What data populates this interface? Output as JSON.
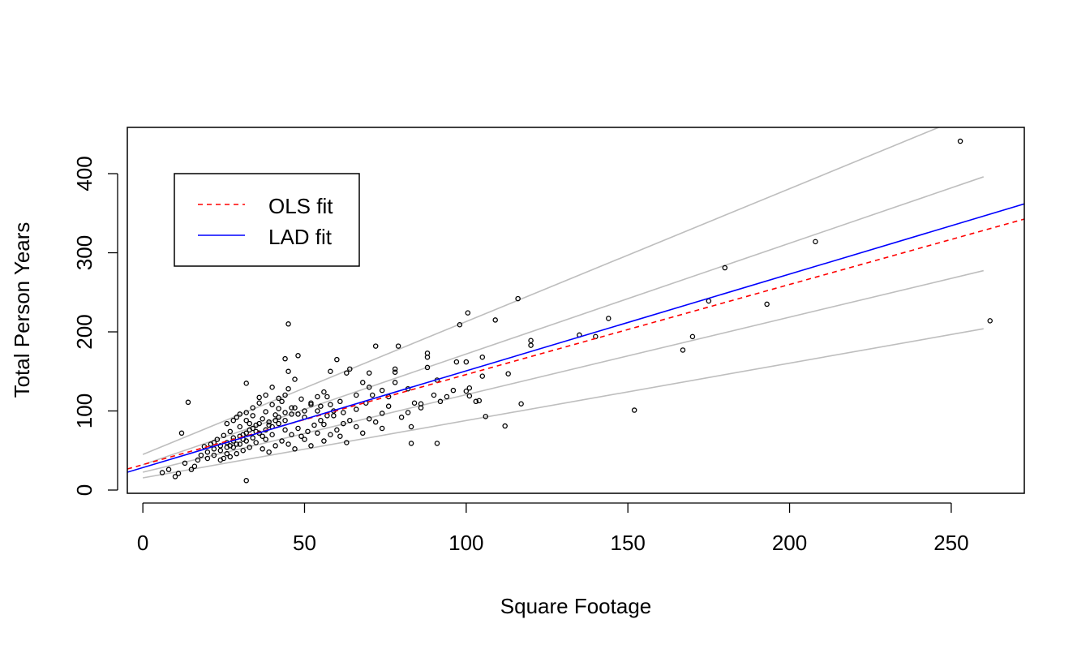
{
  "chart_data": {
    "type": "scatter",
    "title": "",
    "xlabel": "Square Footage",
    "ylabel": "Total Person Years",
    "xlim": [
      -4.8,
      272.6
    ],
    "ylim": [
      -4.1,
      458.5
    ],
    "xticks": [
      0,
      50,
      100,
      150,
      200,
      250
    ],
    "yticks": [
      0,
      100,
      200,
      300,
      400
    ],
    "grid": false,
    "legend": {
      "placement": "top-left",
      "entries": [
        {
          "label": "OLS fit",
          "color": "#ff0000",
          "style": "dashed"
        },
        {
          "label": "LAD fit",
          "color": "#0000ff",
          "style": "solid"
        }
      ]
    },
    "fit_lines": [
      {
        "name": "OLS fit",
        "intercept": 32.1,
        "slope": 1.139,
        "color": "#ff0000",
        "style": "dashed",
        "x_range": [
          -4.8,
          272.6
        ]
      },
      {
        "name": "LAD fit",
        "intercept": 28.4,
        "slope": 1.223,
        "color": "#0000ff",
        "style": "solid",
        "x_range": [
          -4.8,
          272.6
        ]
      }
    ],
    "quantile_lines": {
      "color": "#bebebe",
      "lines": [
        {
          "intercept": 45,
          "slope": 1.68,
          "x_range": [
            0,
            260
          ]
        },
        {
          "intercept": 32,
          "slope": 1.4,
          "x_range": [
            0,
            260
          ]
        },
        {
          "intercept": 22.6,
          "slope": 0.98,
          "x_range": [
            0,
            260
          ]
        },
        {
          "intercept": 15.4,
          "slope": 0.725,
          "x_range": [
            0,
            260
          ]
        }
      ]
    },
    "points": [
      [
        252.8,
        441
      ],
      [
        208,
        314
      ],
      [
        180,
        281
      ],
      [
        175,
        239
      ],
      [
        193,
        235
      ],
      [
        170,
        194
      ],
      [
        167,
        177
      ],
      [
        152,
        101
      ],
      [
        262,
        214
      ],
      [
        144,
        217
      ],
      [
        135,
        196
      ],
      [
        140,
        194
      ],
      [
        116,
        242
      ],
      [
        109,
        215
      ],
      [
        100.5,
        224
      ],
      [
        97,
        162
      ],
      [
        100,
        162
      ],
      [
        98,
        209
      ],
      [
        120,
        189
      ],
      [
        120,
        183
      ],
      [
        117,
        109
      ],
      [
        113,
        147
      ],
      [
        112,
        81
      ],
      [
        106,
        93
      ],
      [
        105,
        168
      ],
      [
        105,
        144
      ],
      [
        103,
        112
      ],
      [
        104,
        113
      ],
      [
        101,
        129
      ],
      [
        101,
        119
      ],
      [
        100,
        125
      ],
      [
        91,
        59
      ],
      [
        91,
        139
      ],
      [
        88,
        168
      ],
      [
        88,
        173
      ],
      [
        88,
        155
      ],
      [
        86,
        109
      ],
      [
        83,
        80
      ],
      [
        83,
        59
      ],
      [
        79,
        182
      ],
      [
        78,
        153
      ],
      [
        78,
        149
      ],
      [
        72,
        182
      ],
      [
        70,
        148
      ],
      [
        68,
        136
      ],
      [
        64,
        153
      ],
      [
        63,
        148
      ],
      [
        60,
        165
      ],
      [
        45,
        210
      ],
      [
        44,
        166
      ],
      [
        48,
        170
      ],
      [
        32,
        135
      ],
      [
        14,
        111
      ],
      [
        12,
        72
      ],
      [
        32,
        12
      ],
      [
        56,
        83
      ],
      [
        58,
        150
      ],
      [
        59,
        94
      ],
      [
        76,
        118
      ],
      [
        74,
        97
      ],
      [
        71,
        120
      ],
      [
        69,
        110
      ],
      [
        66,
        102
      ],
      [
        62,
        98
      ],
      [
        61,
        112
      ],
      [
        57,
        118
      ],
      [
        55,
        106
      ],
      [
        54,
        100
      ],
      [
        52,
        108
      ],
      [
        50,
        92
      ],
      [
        49,
        115
      ],
      [
        47,
        104
      ],
      [
        46,
        96
      ],
      [
        45,
        128
      ],
      [
        44,
        88
      ],
      [
        43,
        112
      ],
      [
        42,
        103
      ],
      [
        41,
        95
      ],
      [
        40,
        108
      ],
      [
        39,
        86
      ],
      [
        38,
        99
      ],
      [
        37,
        90
      ],
      [
        36,
        117
      ],
      [
        35,
        82
      ],
      [
        34,
        94
      ],
      [
        33,
        76
      ],
      [
        32,
        88
      ],
      [
        31,
        70
      ],
      [
        30,
        80
      ],
      [
        29,
        92
      ],
      [
        28,
        66
      ],
      [
        27,
        74
      ],
      [
        26,
        60
      ],
      [
        25,
        69
      ],
      [
        24,
        56
      ],
      [
        23,
        64
      ],
      [
        22,
        52
      ],
      [
        21,
        58
      ],
      [
        20,
        48
      ],
      [
        19,
        55
      ],
      [
        18,
        44
      ],
      [
        17,
        38
      ],
      [
        16,
        30
      ],
      [
        15,
        26
      ],
      [
        13,
        34
      ],
      [
        11,
        21
      ],
      [
        10,
        17
      ],
      [
        8,
        26
      ],
      [
        6,
        22
      ],
      [
        22,
        44
      ],
      [
        24,
        38
      ],
      [
        26,
        46
      ],
      [
        28,
        54
      ],
      [
        30,
        58
      ],
      [
        32,
        62
      ],
      [
        34,
        66
      ],
      [
        36,
        72
      ],
      [
        38,
        76
      ],
      [
        40,
        80
      ],
      [
        42,
        84
      ],
      [
        44,
        76
      ],
      [
        46,
        70
      ],
      [
        48,
        78
      ],
      [
        50,
        64
      ],
      [
        52,
        56
      ],
      [
        54,
        72
      ],
      [
        56,
        62
      ],
      [
        58,
        70
      ],
      [
        60,
        76
      ],
      [
        62,
        84
      ],
      [
        64,
        88
      ],
      [
        66,
        80
      ],
      [
        68,
        72
      ],
      [
        70,
        90
      ],
      [
        72,
        86
      ],
      [
        74,
        78
      ],
      [
        76,
        106
      ],
      [
        80,
        92
      ],
      [
        82,
        98
      ],
      [
        84,
        110
      ],
      [
        86,
        104
      ],
      [
        90,
        120
      ],
      [
        92,
        112
      ],
      [
        94,
        118
      ],
      [
        96,
        126
      ],
      [
        66,
        120
      ],
      [
        70,
        130
      ],
      [
        74,
        126
      ],
      [
        78,
        136
      ],
      [
        82,
        128
      ],
      [
        35,
        60
      ],
      [
        33,
        54
      ],
      [
        31,
        50
      ],
      [
        29,
        46
      ],
      [
        27,
        42
      ],
      [
        25,
        40
      ],
      [
        37,
        52
      ],
      [
        39,
        48
      ],
      [
        41,
        56
      ],
      [
        43,
        62
      ],
      [
        45,
        58
      ],
      [
        47,
        52
      ],
      [
        49,
        68
      ],
      [
        51,
        74
      ],
      [
        53,
        82
      ],
      [
        55,
        88
      ],
      [
        57,
        94
      ],
      [
        59,
        100
      ],
      [
        61,
        68
      ],
      [
        63,
        60
      ],
      [
        20,
        40
      ],
      [
        22,
        60
      ],
      [
        24,
        50
      ],
      [
        26,
        54
      ],
      [
        28,
        62
      ],
      [
        30,
        68
      ],
      [
        32,
        72
      ],
      [
        34,
        78
      ],
      [
        36,
        84
      ],
      [
        38,
        64
      ],
      [
        40,
        70
      ],
      [
        42,
        92
      ],
      [
        44,
        98
      ],
      [
        46,
        104
      ],
      [
        48,
        96
      ],
      [
        50,
        100
      ],
      [
        52,
        110
      ],
      [
        54,
        118
      ],
      [
        56,
        124
      ],
      [
        58,
        108
      ],
      [
        45,
        150
      ],
      [
        47,
        140
      ],
      [
        40,
        130
      ],
      [
        38,
        120
      ],
      [
        36,
        110
      ],
      [
        34,
        104
      ],
      [
        32,
        98
      ],
      [
        30,
        96
      ],
      [
        28,
        88
      ],
      [
        26,
        84
      ],
      [
        42,
        116
      ],
      [
        44,
        120
      ],
      [
        41,
        88
      ],
      [
        39,
        82
      ],
      [
        37,
        68
      ],
      [
        35,
        74
      ],
      [
        33,
        84
      ],
      [
        31,
        64
      ],
      [
        29,
        58
      ],
      [
        27,
        56
      ]
    ]
  }
}
